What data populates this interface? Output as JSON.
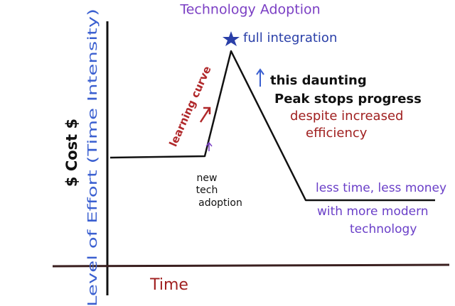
{
  "title": "Technology Adoption",
  "y_axis": {
    "cost": "$ Cost $",
    "effort": "Level of Effort (Time Intensity)"
  },
  "x_axis": "Time",
  "annotations": {
    "peak": "full integration",
    "climb": "learning curve",
    "warning": [
      "this daunting",
      "Peak stops progress"
    ],
    "reason": [
      "despite increased",
      "efficiency"
    ],
    "start": [
      "new",
      "tech",
      "adoption"
    ],
    "result": "less time, less money",
    "modern": [
      "with more modern",
      "technology"
    ]
  }
}
